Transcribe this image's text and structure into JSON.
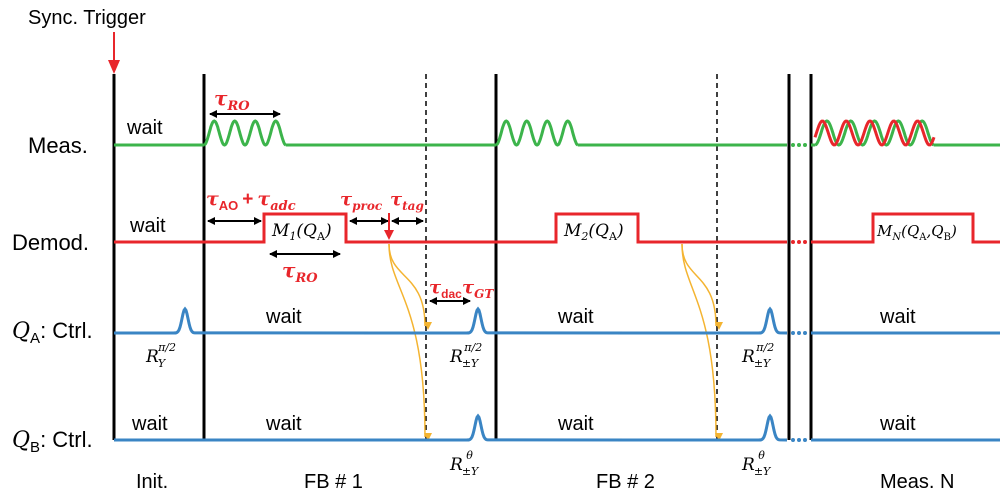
{
  "trigger": {
    "label": "Sync. Trigger"
  },
  "rows": {
    "meas": "Meas.",
    "demod": "Demod.",
    "qa_q": "Q",
    "qa_sub": "A",
    "qa_rest": ": Ctrl.",
    "qb_q": "Q",
    "qb_sub": "B",
    "qb_rest": ": Ctrl."
  },
  "wait": "wait",
  "phases": {
    "init": "Init.",
    "fb1": "FB # 1",
    "fb2": "FB # 2",
    "measn": "Meas. N"
  },
  "timing": {
    "tau": "τ",
    "ro": "RO",
    "ao": "AO",
    "adc": "adc",
    "proc": "proc",
    "tag": "tag",
    "dac": "dac",
    "gt": "GT",
    "plus": "+"
  },
  "demod_blocks": {
    "m1": "M",
    "m1_sub": "1",
    "m1_arg": "(Q",
    "m1_argsub": "A",
    "m1_close": ")",
    "m2": "M",
    "m2_sub": "2",
    "m2_arg": "(Q",
    "m2_argsub": "A",
    "m2_close": ")",
    "mn": "M",
    "mn_sub": "N",
    "mn_arg": "(Q",
    "mn_argsub": "A",
    "mn_comma": ",Q",
    "mn_argsub2": "B",
    "mn_close": ")"
  },
  "pulses": {
    "r": "R",
    "y": "Y",
    "pmy": "±Y",
    "half_pi": "π/2",
    "theta": "θ"
  },
  "colors": {
    "meas": "#3cb44b",
    "demod": "#e8262b",
    "ctrl": "#3a85c4",
    "feedback": "#f4b431"
  }
}
